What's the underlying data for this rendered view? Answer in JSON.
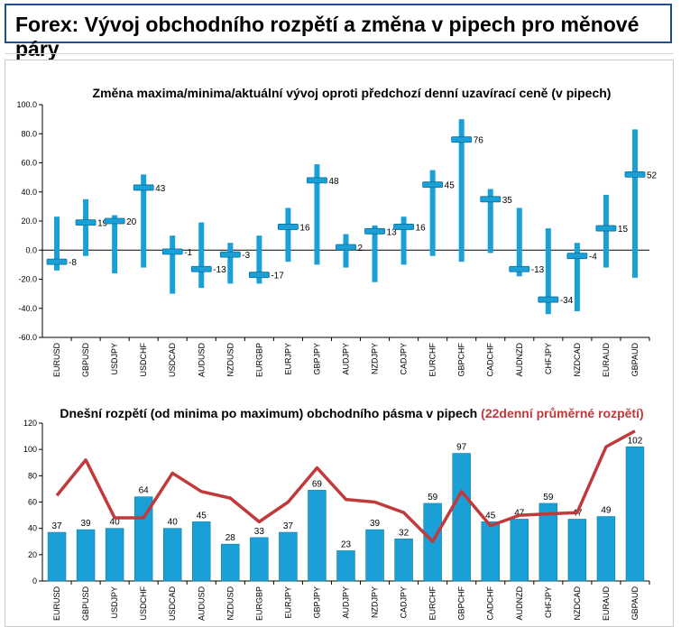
{
  "page_title": "Forex: Vývoj obchodního rozpětí a změna v pipech pro měnové páry",
  "colors": {
    "bar": "#1aa0d6",
    "marker": "#1aa0d6",
    "avg_line": "#c0393b",
    "title_border": "#1f4e8c"
  },
  "chart_data": [
    {
      "type": "range",
      "title": "Změna maxima/minima/aktuální vývoj oproti předchozí denní uzavírací ceně (v pipech)",
      "ylim": [
        -60,
        100
      ],
      "yticks": [
        "100.0",
        "80.0",
        "60.0",
        "40.0",
        "20.0",
        "0.0",
        "-20.0",
        "-40.0",
        "-60.0"
      ],
      "grid": false,
      "categories": [
        "EURUSD",
        "GBPUSD",
        "USDJPY",
        "USDCHF",
        "USDCAD",
        "AUDUSD",
        "NZDUSD",
        "EURGBP",
        "EURJPY",
        "GBPJPY",
        "AUDJPY",
        "NZDJPY",
        "CADJPY",
        "EURCHF",
        "GBPCHF",
        "CADCHF",
        "AUDNZD",
        "CHFJPY",
        "NZDCAD",
        "EURAUD",
        "GBPAUD"
      ],
      "high": [
        23,
        35,
        24,
        52,
        10,
        19,
        5,
        10,
        29,
        59,
        11,
        17,
        23,
        55,
        90,
        42,
        29,
        15,
        5,
        38,
        83
      ],
      "low": [
        -14,
        -4,
        -16,
        -12,
        -30,
        -26,
        -23,
        -23,
        -8,
        -10,
        -12,
        -22,
        -10,
        -4,
        -8,
        -2,
        -18,
        -44,
        -42,
        -12,
        -19
      ],
      "current": [
        -8,
        19,
        20,
        43,
        -1,
        -13,
        -3,
        -17,
        16,
        48,
        2,
        13,
        16,
        45,
        76,
        35,
        -13,
        -34,
        -4,
        15,
        52
      ],
      "labels": [
        "-8",
        "19",
        "20",
        "43",
        "-1",
        "-13",
        "-3",
        "-17",
        "16",
        "48",
        "2",
        "13",
        "16",
        "45",
        "76",
        "35",
        "-13",
        "-34",
        "-4",
        "15",
        "52"
      ]
    },
    {
      "type": "bar+line",
      "title": "Dnešní rozpětí (od minima po maximum) obchodního pásma v pipech",
      "title_suffix": "(22denní průměrné rozpětí)",
      "ylim": [
        0,
        120
      ],
      "yticks": [
        "120",
        "100",
        "80",
        "60",
        "40",
        "20",
        "0"
      ],
      "grid": false,
      "categories": [
        "EURUSD",
        "GBPUSD",
        "USDJPY",
        "USDCHF",
        "USDCAD",
        "AUDUSD",
        "NZDUSD",
        "EURGBP",
        "EURJPY",
        "GBPJPY",
        "AUDJPY",
        "NZDJPY",
        "CADJPY",
        "EURCHF",
        "GBPCHF",
        "CADCHF",
        "AUDNZD",
        "CHFJPY",
        "NZDCAD",
        "EURAUD",
        "GBPAUD"
      ],
      "values": [
        37,
        39,
        40,
        64,
        40,
        45,
        28,
        33,
        37,
        69,
        23,
        39,
        32,
        59,
        97,
        45,
        47,
        59,
        47,
        49,
        102
      ],
      "labels": [
        "37",
        "39",
        "40",
        "64",
        "40",
        "45",
        "28",
        "33",
        "37",
        "69",
        "23",
        "39",
        "32",
        "59",
        "97",
        "45",
        "47",
        "59",
        "47",
        "49",
        "102"
      ],
      "avg_range": [
        65,
        92,
        48,
        48,
        82,
        68,
        63,
        45,
        60,
        86,
        62,
        60,
        52,
        30,
        68,
        42,
        50,
        51,
        52,
        102,
        114
      ]
    }
  ]
}
